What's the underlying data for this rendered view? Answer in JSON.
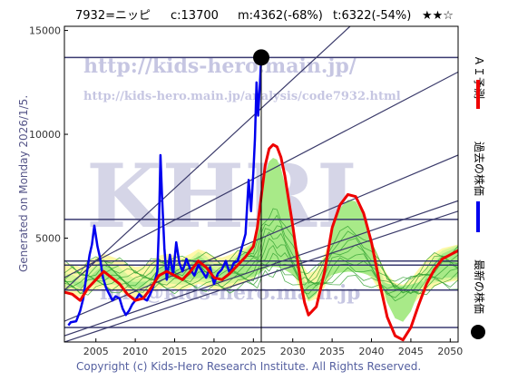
{
  "header": {
    "code_name": "7932=ニッピ",
    "current": "c:13700",
    "max_info": "m:4362(-68%)",
    "target_info": "t:6322(-54%)",
    "stars": "★★☆"
  },
  "side_text": "Generated on Monday 2026/1/5.",
  "footer": "Copyright (c) Kids-Hero Research Institute. All Rights Reserved.",
  "watermarks": {
    "big": "KHRI",
    "url1": "http://kids-hero.main.jp/",
    "url2": "http://kids-hero.main.jp/analysis/code7932.html",
    "mail": "info@kids-hero.main.jp"
  },
  "legend": [
    {
      "label": "ＡＩ予測",
      "color": "#ee0000",
      "marker": "line"
    },
    {
      "label": "過去の株価",
      "color": "#0000ee",
      "marker": "line"
    },
    {
      "label": "最新の株価",
      "color": "#000000",
      "marker": "dot"
    }
  ],
  "chart_data": {
    "type": "line",
    "title": "",
    "xlabel": "",
    "ylabel": "",
    "xlim": [
      2001,
      2051
    ],
    "ylim": [
      0,
      15200
    ],
    "x_ticks": [
      2005,
      2010,
      2015,
      2020,
      2025,
      2030,
      2035,
      2040,
      2045,
      2050
    ],
    "y_ticks": [
      5000,
      10000,
      15000
    ],
    "horizontal_levels": [
      13700,
      5900,
      3900,
      3700,
      2500,
      700
    ],
    "diagonal_channels": [
      {
        "x0": 2001,
        "y0": 3100,
        "x1": 2051,
        "y1": 13000
      },
      {
        "x0": 2001,
        "y0": 1000,
        "x1": 2051,
        "y1": 9000
      },
      {
        "x0": 2001,
        "y0": 300,
        "x1": 2051,
        "y1": 6800
      },
      {
        "x0": 2001,
        "y0": 0,
        "x1": 2051,
        "y1": 6300
      },
      {
        "x0": 2001,
        "y0": 2500,
        "x1": 2051,
        "y1": 20000
      }
    ],
    "latest": {
      "x": 2026.0,
      "y": 13700
    },
    "series": [
      {
        "name": "過去の株価",
        "color": "#0000ee",
        "points": [
          [
            2001.5,
            800
          ],
          [
            2001.8,
            950
          ],
          [
            2002.5,
            1000
          ],
          [
            2003.0,
            1500
          ],
          [
            2003.4,
            2100
          ],
          [
            2003.8,
            3200
          ],
          [
            2004.2,
            4200
          ],
          [
            2004.5,
            4700
          ],
          [
            2004.8,
            5600
          ],
          [
            2005.2,
            4600
          ],
          [
            2005.5,
            4100
          ],
          [
            2005.9,
            3100
          ],
          [
            2006.3,
            2600
          ],
          [
            2006.7,
            2300
          ],
          [
            2007.1,
            2000
          ],
          [
            2007.5,
            2200
          ],
          [
            2008.0,
            2100
          ],
          [
            2008.4,
            1600
          ],
          [
            2008.8,
            1300
          ],
          [
            2009.2,
            1500
          ],
          [
            2009.6,
            1800
          ],
          [
            2010.0,
            2000
          ],
          [
            2010.5,
            2300
          ],
          [
            2011.0,
            2100
          ],
          [
            2011.5,
            2000
          ],
          [
            2012.0,
            2400
          ],
          [
            2012.4,
            2800
          ],
          [
            2012.8,
            3400
          ],
          [
            2013.0,
            5500
          ],
          [
            2013.2,
            9000
          ],
          [
            2013.4,
            7000
          ],
          [
            2013.7,
            4500
          ],
          [
            2014.0,
            3000
          ],
          [
            2014.4,
            4200
          ],
          [
            2014.8,
            3200
          ],
          [
            2015.2,
            4800
          ],
          [
            2015.6,
            3800
          ],
          [
            2016.0,
            3400
          ],
          [
            2016.5,
            4000
          ],
          [
            2017.0,
            3500
          ],
          [
            2017.5,
            3200
          ],
          [
            2018.0,
            3700
          ],
          [
            2018.5,
            3400
          ],
          [
            2019.0,
            3100
          ],
          [
            2019.5,
            3600
          ],
          [
            2020.0,
            2800
          ],
          [
            2020.5,
            3300
          ],
          [
            2021.0,
            3500
          ],
          [
            2021.5,
            3900
          ],
          [
            2022.0,
            3300
          ],
          [
            2022.5,
            3800
          ],
          [
            2023.0,
            3900
          ],
          [
            2023.5,
            4500
          ],
          [
            2024.0,
            5200
          ],
          [
            2024.4,
            7800
          ],
          [
            2024.7,
            6300
          ],
          [
            2025.0,
            8200
          ],
          [
            2025.2,
            9800
          ],
          [
            2025.4,
            12500
          ],
          [
            2025.6,
            10900
          ],
          [
            2025.8,
            12200
          ],
          [
            2026.0,
            13700
          ]
        ]
      },
      {
        "name": "ＡＩ予測",
        "color": "#ee0000",
        "points": [
          [
            2001.0,
            2400
          ],
          [
            2002.0,
            2300
          ],
          [
            2003.0,
            2000
          ],
          [
            2004.0,
            2600
          ],
          [
            2005.0,
            3000
          ],
          [
            2006.0,
            3400
          ],
          [
            2007.0,
            3100
          ],
          [
            2008.0,
            2800
          ],
          [
            2009.0,
            2300
          ],
          [
            2010.0,
            2000
          ],
          [
            2011.0,
            2100
          ],
          [
            2012.0,
            2600
          ],
          [
            2013.0,
            3200
          ],
          [
            2014.0,
            3400
          ],
          [
            2015.0,
            3200
          ],
          [
            2016.0,
            3000
          ],
          [
            2017.0,
            3400
          ],
          [
            2018.0,
            3900
          ],
          [
            2019.0,
            3600
          ],
          [
            2020.0,
            3100
          ],
          [
            2021.0,
            3000
          ],
          [
            2022.0,
            3300
          ],
          [
            2023.0,
            3700
          ],
          [
            2024.0,
            4100
          ],
          [
            2025.0,
            4600
          ],
          [
            2025.5,
            5500
          ],
          [
            2026.0,
            7000
          ],
          [
            2026.5,
            8500
          ],
          [
            2027.0,
            9300
          ],
          [
            2027.5,
            9500
          ],
          [
            2028.0,
            9400
          ],
          [
            2028.5,
            8900
          ],
          [
            2029.0,
            8000
          ],
          [
            2030.0,
            5600
          ],
          [
            2031.0,
            2900
          ],
          [
            2031.5,
            1900
          ],
          [
            2032.0,
            1300
          ],
          [
            2033.0,
            1700
          ],
          [
            2034.0,
            3300
          ],
          [
            2035.0,
            5500
          ],
          [
            2036.0,
            6600
          ],
          [
            2037.0,
            7100
          ],
          [
            2038.0,
            7000
          ],
          [
            2039.0,
            6200
          ],
          [
            2040.0,
            4800
          ],
          [
            2041.0,
            2900
          ],
          [
            2042.0,
            1200
          ],
          [
            2043.0,
            300
          ],
          [
            2044.0,
            100
          ],
          [
            2045.0,
            700
          ],
          [
            2046.0,
            1800
          ],
          [
            2047.0,
            2800
          ],
          [
            2048.0,
            3500
          ],
          [
            2049.0,
            4000
          ],
          [
            2050.0,
            4200
          ],
          [
            2051.0,
            4400
          ]
        ]
      }
    ]
  }
}
